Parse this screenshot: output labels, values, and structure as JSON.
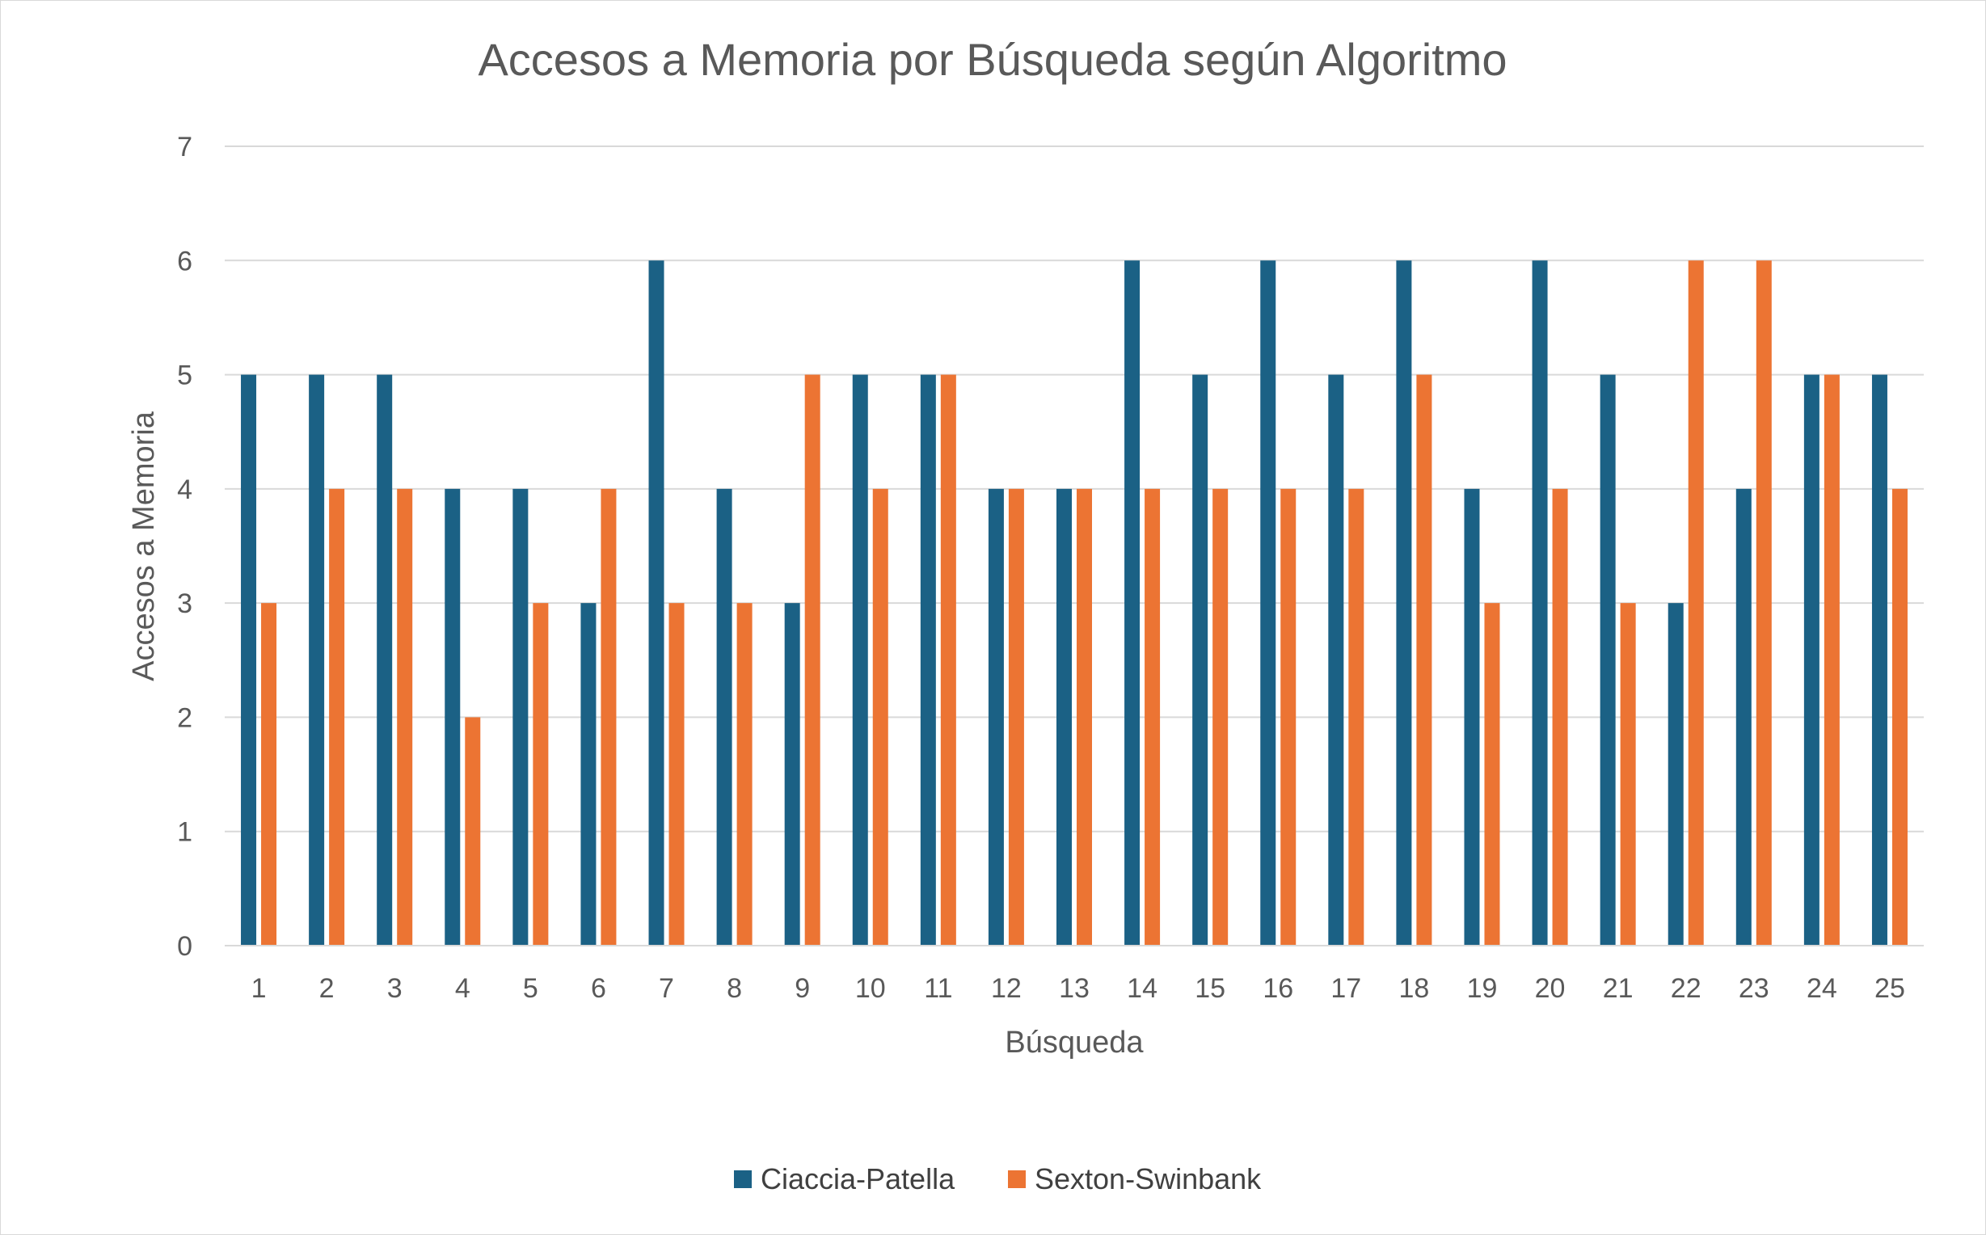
{
  "chart_data": {
    "type": "bar",
    "title": "Accesos a Memoria por Búsqueda según Algoritmo",
    "xlabel": "Búsqueda",
    "ylabel": "Accesos a Memoria",
    "ylim": [
      0,
      7
    ],
    "yticks": [
      "0",
      "1",
      "2",
      "3",
      "4",
      "5",
      "6",
      "7"
    ],
    "categories": [
      "1",
      "2",
      "3",
      "4",
      "5",
      "6",
      "7",
      "8",
      "9",
      "10",
      "11",
      "12",
      "13",
      "14",
      "15",
      "16",
      "17",
      "18",
      "19",
      "20",
      "21",
      "22",
      "23",
      "24",
      "25"
    ],
    "series": [
      {
        "name": "Ciaccia-Patella",
        "color": "#1b6185",
        "values": [
          5,
          5,
          5,
          4,
          4,
          3,
          6,
          4,
          3,
          5,
          5,
          4,
          4,
          6,
          5,
          6,
          5,
          6,
          4,
          6,
          5,
          3,
          4,
          5,
          5
        ]
      },
      {
        "name": "Sexton-Swinbank",
        "color": "#ec7433",
        "values": [
          3,
          4,
          4,
          2,
          3,
          4,
          3,
          3,
          5,
          4,
          5,
          4,
          4,
          4,
          4,
          4,
          4,
          5,
          3,
          4,
          3,
          6,
          6,
          5,
          4
        ]
      }
    ],
    "grid": true,
    "gridline_color": "#d9d9d9",
    "legend_position": "bottom"
  }
}
